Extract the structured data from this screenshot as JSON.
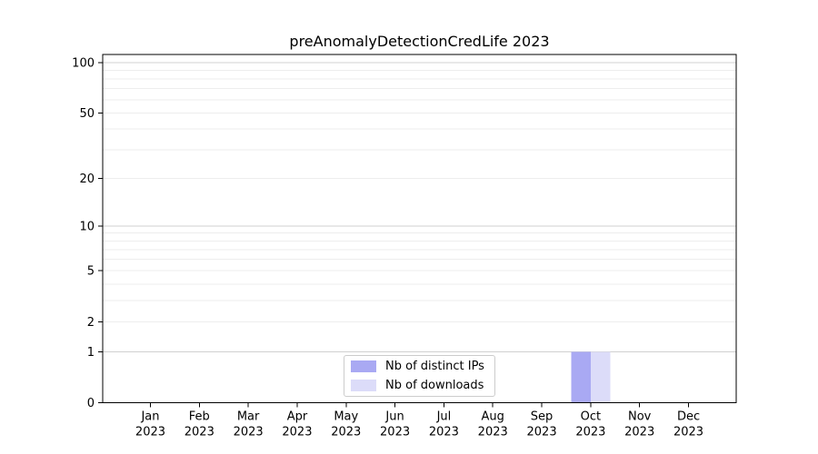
{
  "chart_data": {
    "type": "bar",
    "title": "preAnomalyDetectionCredLife 2023",
    "categories": [
      "Jan 2023",
      "Feb 2023",
      "Mar 2023",
      "Apr 2023",
      "May 2023",
      "Jun 2023",
      "Jul 2023",
      "Aug 2023",
      "Sep 2023",
      "Oct 2023",
      "Nov 2023",
      "Dec 2023"
    ],
    "series": [
      {
        "name": "Nb of distinct IPs",
        "color": "#a9a9f3",
        "values": [
          0,
          0,
          0,
          0,
          0,
          0,
          0,
          0,
          0,
          1,
          0,
          0
        ]
      },
      {
        "name": "Nb of downloads",
        "color": "#dcdcf9",
        "values": [
          0,
          0,
          0,
          0,
          0,
          0,
          0,
          0,
          0,
          1,
          0,
          0
        ]
      }
    ],
    "xlabel": "",
    "ylabel": "",
    "yscale": "log1p",
    "ylim": [
      0,
      112
    ],
    "yticks": [
      0,
      1,
      2,
      5,
      10,
      20,
      50,
      100
    ],
    "grid_major": [
      1,
      10,
      100
    ],
    "grid_minor": [
      2,
      3,
      4,
      5,
      6,
      7,
      8,
      9,
      20,
      30,
      40,
      50,
      60,
      70,
      80,
      90
    ],
    "legend_location": "lower center",
    "colors": {
      "grid_major": "#d0d0d0",
      "grid_minor": "#ededed",
      "axis": "#000000"
    }
  }
}
